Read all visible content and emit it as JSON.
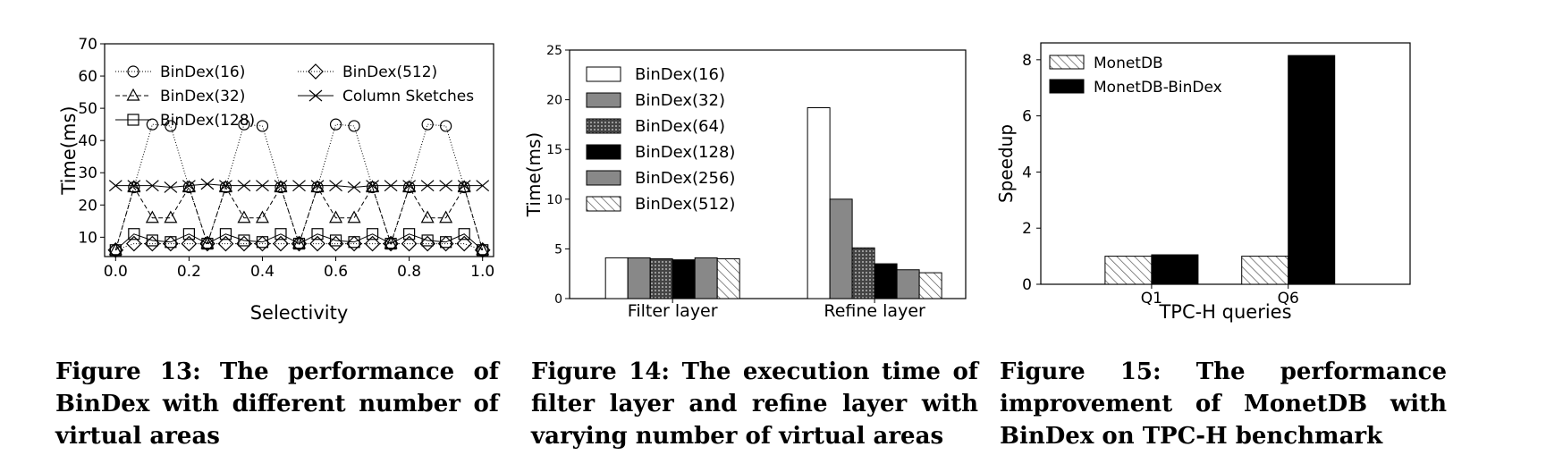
{
  "figures": [
    {
      "caption": "Figure 13: The performance of BinDex with different number of virtual areas",
      "chart_data": {
        "type": "line",
        "xlabel": "Selectivity",
        "ylabel": "Time(ms)",
        "xlim": [
          -0.03,
          1.03
        ],
        "ylim": [
          4,
          70
        ],
        "xticks": [
          "0.0",
          "0.2",
          "0.4",
          "0.6",
          "0.8",
          "1.0"
        ],
        "xtick_values": [
          0,
          0.2,
          0.4,
          0.6,
          0.8,
          1.0
        ],
        "yticks": [
          "10",
          "20",
          "30",
          "40",
          "50",
          "60",
          "70"
        ],
        "ytick_values": [
          10,
          20,
          30,
          40,
          50,
          60,
          70
        ],
        "legend_position": "top",
        "x": [
          0,
          0.05,
          0.1,
          0.15,
          0.2,
          0.25,
          0.3,
          0.35,
          0.4,
          0.45,
          0.5,
          0.55,
          0.6,
          0.65,
          0.7,
          0.75,
          0.8,
          0.85,
          0.9,
          0.95,
          1.0
        ],
        "series": [
          {
            "name": "BinDex(16)",
            "marker": "circle",
            "dash": "1,2",
            "values": [
              6,
              25.5,
              45,
              44.5,
              25.5,
              8,
              25.5,
              45,
              44.5,
              25.5,
              8,
              25.5,
              45,
              44.5,
              25.5,
              8,
              25.5,
              45,
              44.5,
              25.5,
              6
            ]
          },
          {
            "name": "BinDex(32)",
            "marker": "triangle",
            "dash": "5,3",
            "values": [
              6,
              25.5,
              16,
              16,
              25.5,
              8,
              25.5,
              16,
              16,
              25.5,
              8,
              25.5,
              16,
              16,
              25.5,
              8,
              25.5,
              16,
              16,
              25.5,
              6
            ]
          },
          {
            "name": "BinDex(128)",
            "marker": "square",
            "dash": "",
            "values": [
              6,
              11,
              9,
              8.5,
              11,
              8,
              11,
              9,
              8.5,
              11,
              8,
              11,
              9,
              8.5,
              11,
              8,
              11,
              9,
              8.5,
              11,
              6
            ]
          },
          {
            "name": "BinDex(512)",
            "marker": "diamond",
            "dash": "1,2",
            "values": [
              6,
              8,
              8,
              8,
              8,
              8,
              8,
              8,
              8,
              8,
              8,
              8,
              8,
              8,
              8,
              8,
              8,
              8,
              8,
              8,
              6
            ]
          },
          {
            "name": "Column Sketches",
            "marker": "x",
            "dash": "",
            "values": [
              26,
              26,
              26,
              25.5,
              26,
              26.5,
              26,
              26,
              26,
              26,
              26,
              26,
              26,
              25.5,
              26,
              26,
              26,
              26,
              26,
              26,
              26
            ]
          }
        ]
      }
    },
    {
      "caption": "Figure 14: The execution time of filter layer and refine layer with varying number of virtual areas",
      "chart_data": {
        "type": "bar",
        "ylabel": "Time(ms)",
        "xlabel": "",
        "ylim": [
          0,
          25
        ],
        "yticks": [
          "0",
          "5",
          "10",
          "15",
          "20",
          "25"
        ],
        "ytick_values": [
          0,
          5,
          10,
          15,
          20,
          25
        ],
        "categories": [
          "Filter layer",
          "Refine layer"
        ],
        "legend_position": "top-left",
        "series": [
          {
            "name": "BinDex(16)",
            "fill": "#ffffff",
            "pattern": "none",
            "values": [
              4.1,
              19.2
            ]
          },
          {
            "name": "BinDex(32)",
            "fill": "#888888",
            "pattern": "none",
            "values": [
              4.1,
              10
            ]
          },
          {
            "name": "BinDex(64)",
            "fill": "#555555",
            "pattern": "dots",
            "values": [
              4.0,
              5.1
            ]
          },
          {
            "name": "BinDex(128)",
            "fill": "#000000",
            "pattern": "none",
            "values": [
              3.9,
              3.5
            ]
          },
          {
            "name": "BinDex(256)",
            "fill": "#888888",
            "pattern": "none",
            "values": [
              4.1,
              2.9
            ]
          },
          {
            "name": "BinDex(512)",
            "fill": "#dddddd",
            "pattern": "hatch",
            "values": [
              4.0,
              2.6
            ]
          }
        ]
      }
    },
    {
      "caption": "Figure 15: The performance improvement of MonetDB with BinDex on TPC-H benchmark",
      "chart_data": {
        "type": "bar",
        "xlabel": "TPC-H queries",
        "ylabel": "Speedup",
        "ylim": [
          0,
          8.6
        ],
        "yticks": [
          "0",
          "2",
          "4",
          "6",
          "8"
        ],
        "ytick_values": [
          0,
          2,
          4,
          6,
          8
        ],
        "categories": [
          "Q1",
          "Q6"
        ],
        "legend_position": "top-left",
        "series": [
          {
            "name": "MonetDB",
            "fill": "#ffffff",
            "pattern": "hatch",
            "values": [
              1.0,
              1.0
            ]
          },
          {
            "name": "MonetDB-BinDex",
            "fill": "#000000",
            "pattern": "none",
            "values": [
              1.05,
              8.15
            ]
          }
        ]
      }
    }
  ]
}
